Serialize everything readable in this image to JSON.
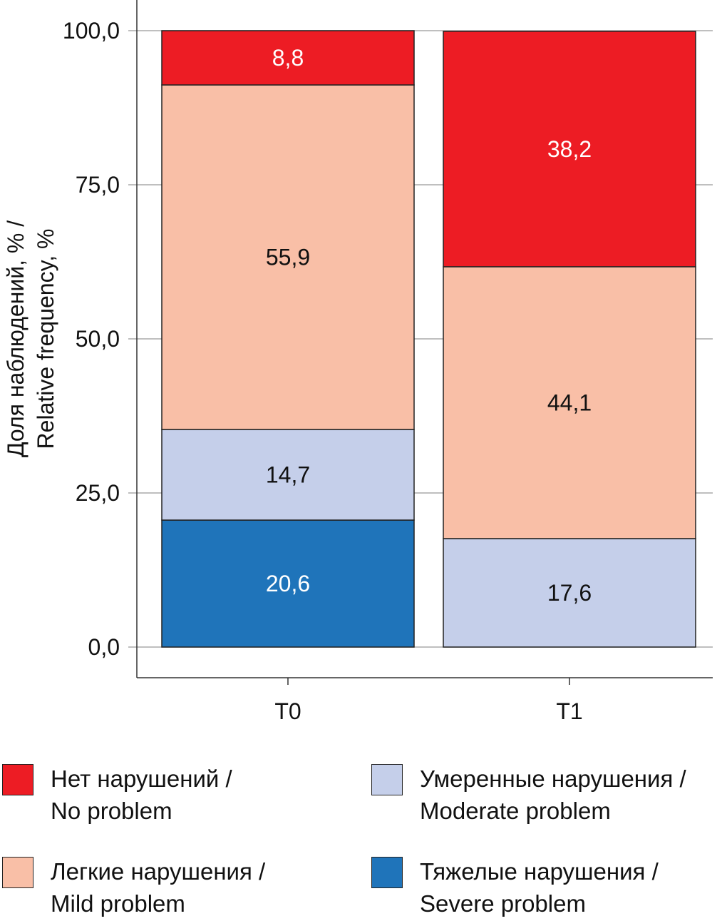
{
  "chart_data": {
    "type": "bar",
    "stacked": true,
    "categories": [
      "T0",
      "T1"
    ],
    "ylabel": [
      "Доля наблюдений, % /",
      "Relative frequency, %"
    ],
    "xlabel": "",
    "ylim": [
      0,
      100
    ],
    "yticks": [
      "0,0",
      "25,0",
      "50,0",
      "75,0",
      "100,0"
    ],
    "ytick_values": [
      0,
      25,
      50,
      75,
      100
    ],
    "grid": "horizontal",
    "legend_position": "bottom",
    "series": [
      {
        "name": "Тяжелые нарушения / Severe problem",
        "label_lines": [
          "Тяжелые нарушения /",
          "Severe problem"
        ],
        "color": "#1F74BA",
        "label_color": "#FFFFFF",
        "values": [
          20.6,
          0
        ],
        "labels": [
          "20,6",
          ""
        ]
      },
      {
        "name": "Умеренные нарушения / Moderate problem",
        "label_lines": [
          "Умеренные нарушения /",
          "Moderate problem"
        ],
        "color": "#C5CFEA",
        "label_color": "#111111",
        "values": [
          14.7,
          17.6
        ],
        "labels": [
          "14,7",
          "17,6"
        ]
      },
      {
        "name": "Легкие нарушения / Mild problem",
        "label_lines": [
          "Легкие нарушения /",
          "Mild problem"
        ],
        "color": "#F9BFA7",
        "label_color": "#111111",
        "values": [
          55.9,
          44.1
        ],
        "labels": [
          "55,9",
          "44,1"
        ]
      },
      {
        "name": "Нет нарушений / No problem",
        "label_lines": [
          "Нет нарушений /",
          "No problem"
        ],
        "color": "#ED1C24",
        "label_color": "#FFFFFF",
        "values": [
          8.8,
          38.2
        ],
        "labels": [
          "8,8",
          "38,2"
        ]
      }
    ]
  }
}
